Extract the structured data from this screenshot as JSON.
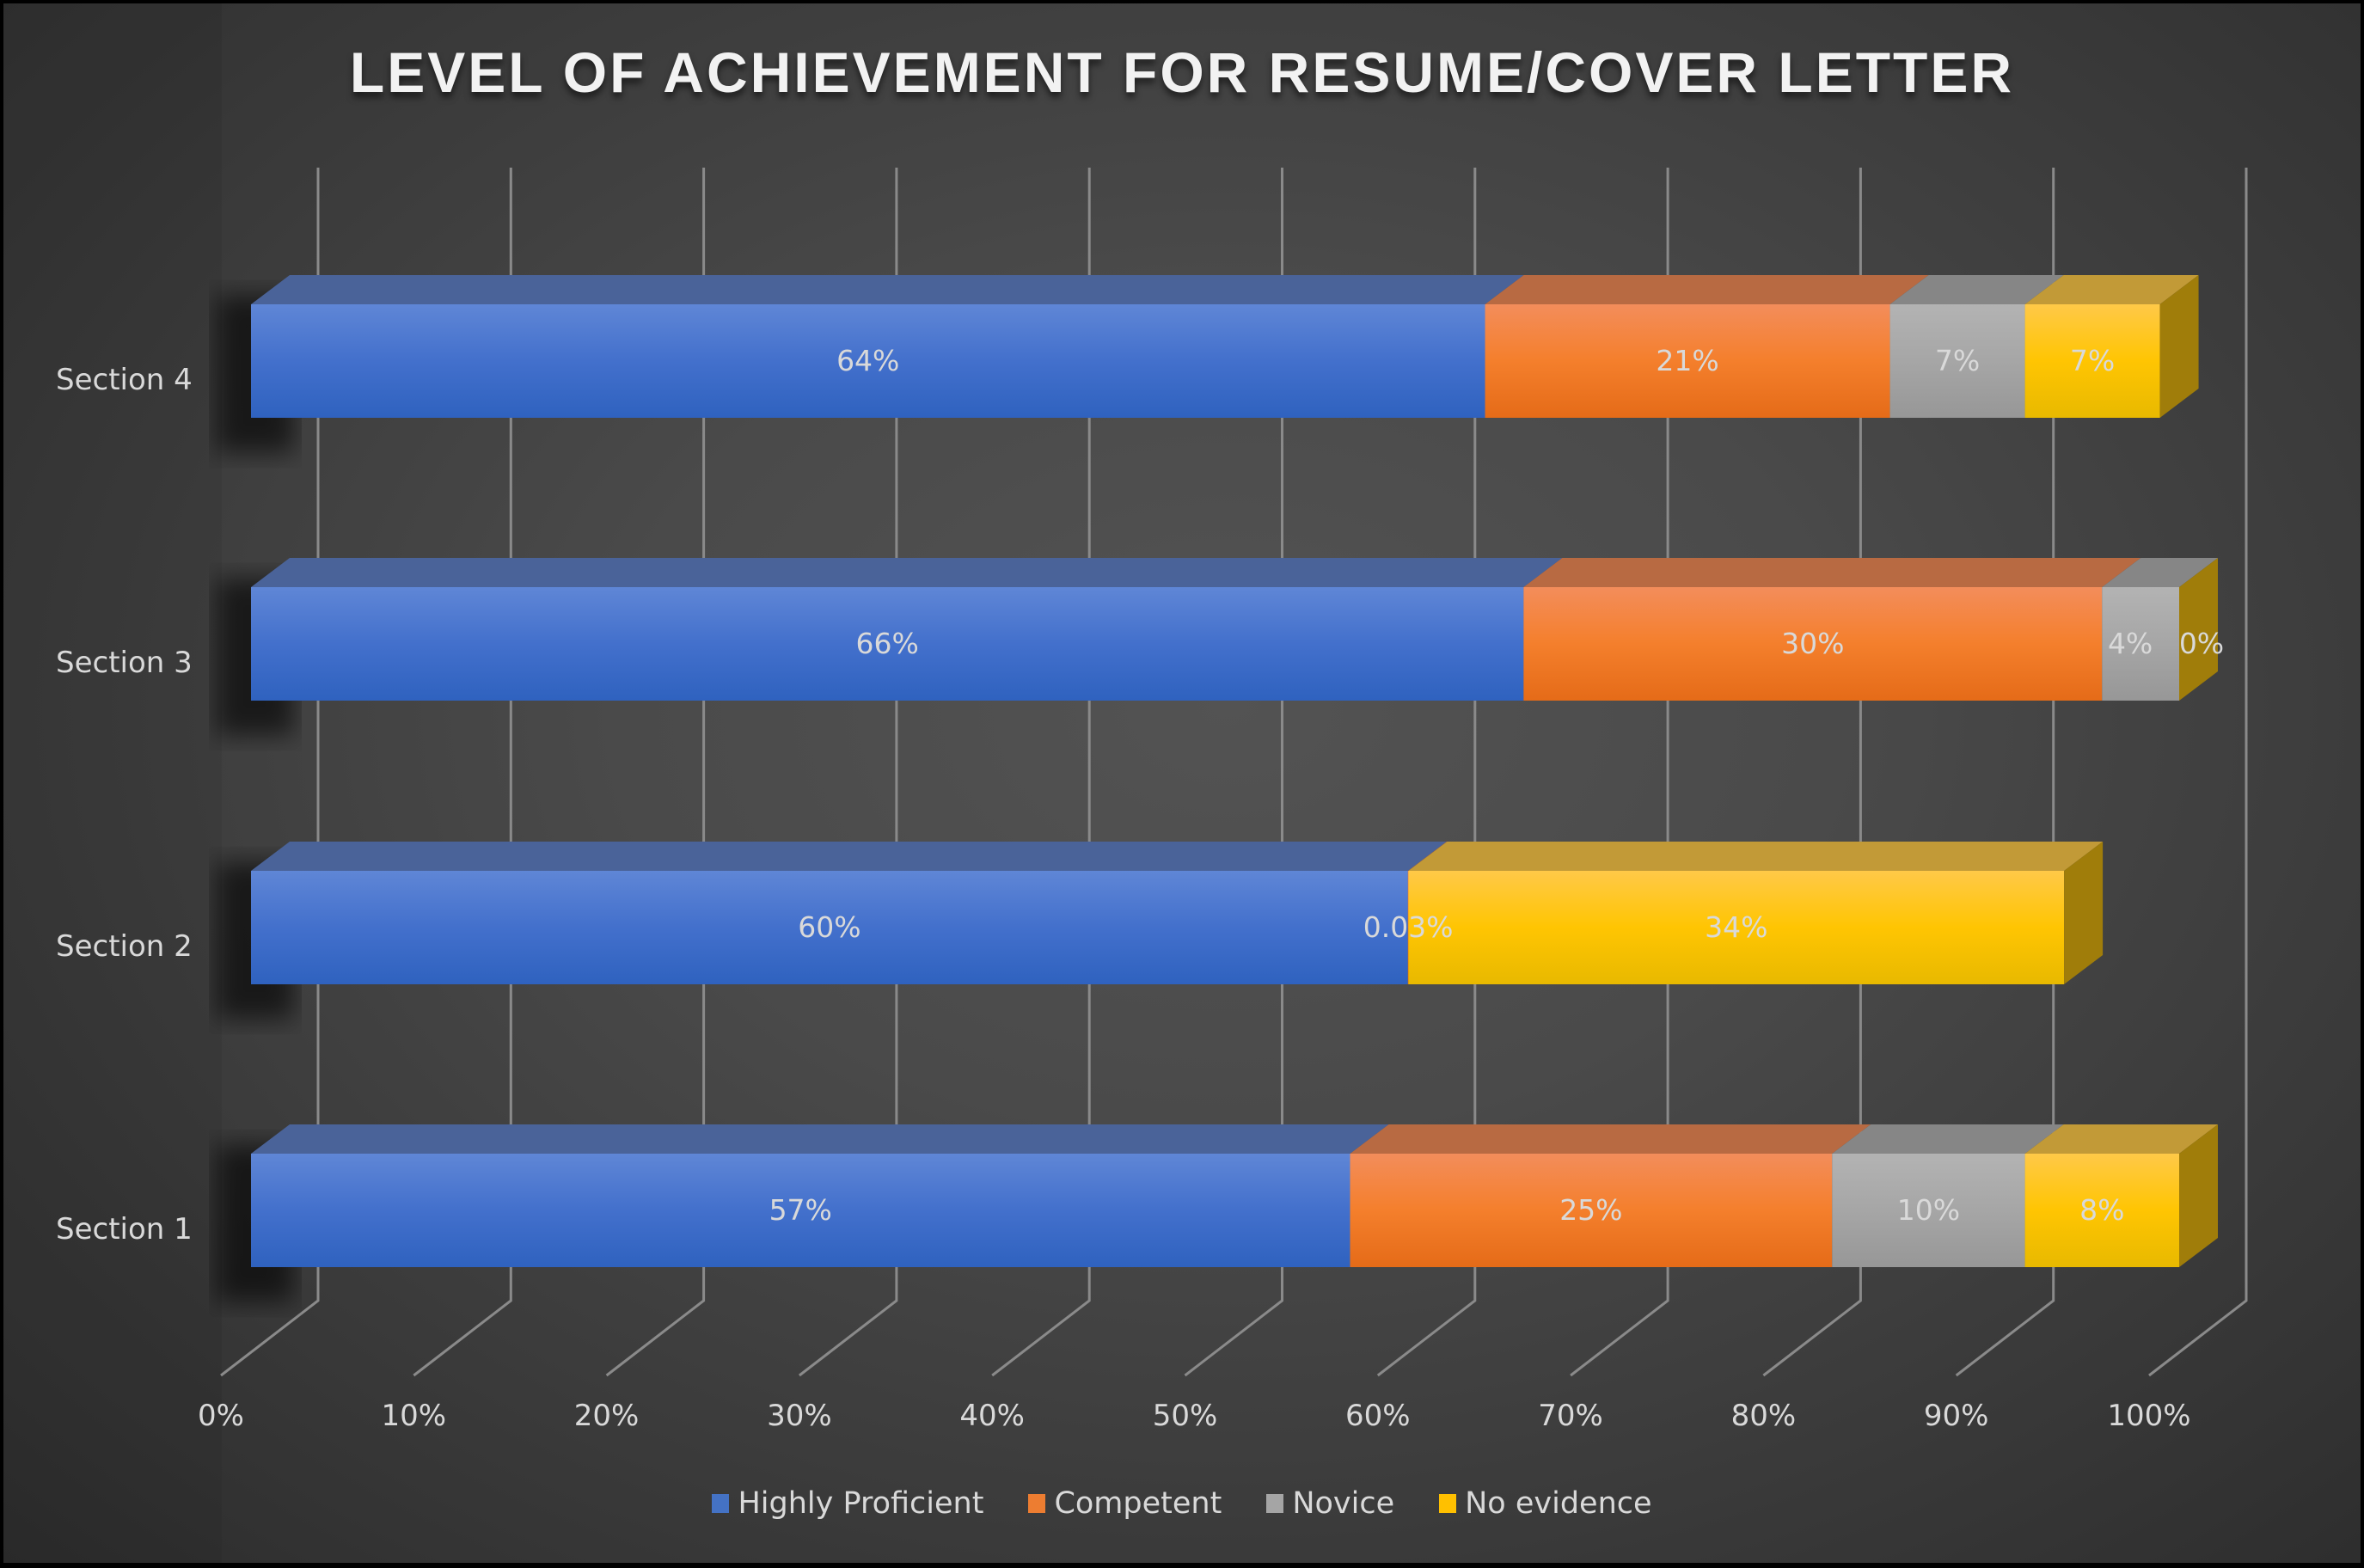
{
  "chart_data": {
    "type": "bar",
    "orientation": "horizontal",
    "stacked": "100%",
    "style": "3d",
    "title": "LEVEL OF ACHIEVEMENT FOR RESUME/COVER LETTER",
    "xlabel": "",
    "ylabel": "",
    "xlim": [
      0,
      1
    ],
    "x_ticks": [
      "0%",
      "10%",
      "20%",
      "30%",
      "40%",
      "50%",
      "60%",
      "70%",
      "80%",
      "90%",
      "100%"
    ],
    "categories": [
      "Section 1",
      "Section 2",
      "Section 3",
      "Section 4"
    ],
    "series": [
      {
        "name": "Highly Proficient",
        "color": "#4472c4",
        "values": [
          57,
          60,
          66,
          64
        ],
        "labels": [
          "57%",
          "60%",
          "66%",
          "64%"
        ]
      },
      {
        "name": "Competent",
        "color": "#ed7d31",
        "values": [
          25,
          0.03,
          30,
          21
        ],
        "labels": [
          "25%",
          "0.03%",
          "30%",
          "21%"
        ]
      },
      {
        "name": "Novice",
        "color": "#a5a5a5",
        "values": [
          10,
          0,
          4,
          7
        ],
        "labels": [
          "10%",
          "",
          "4%",
          "7%"
        ]
      },
      {
        "name": "No evidence",
        "color": "#ffc000",
        "values": [
          8,
          34,
          0,
          7
        ],
        "labels": [
          "8%",
          "34%",
          "0%",
          "7%"
        ]
      }
    ],
    "grid": true,
    "legend_position": "bottom"
  },
  "legend": [
    {
      "label": "Highly Proficient",
      "color": "#4472c4"
    },
    {
      "label": "Competent",
      "color": "#ed7d31"
    },
    {
      "label": "Novice",
      "color": "#a5a5a5"
    },
    {
      "label": "No evidence",
      "color": "#ffc000"
    }
  ]
}
